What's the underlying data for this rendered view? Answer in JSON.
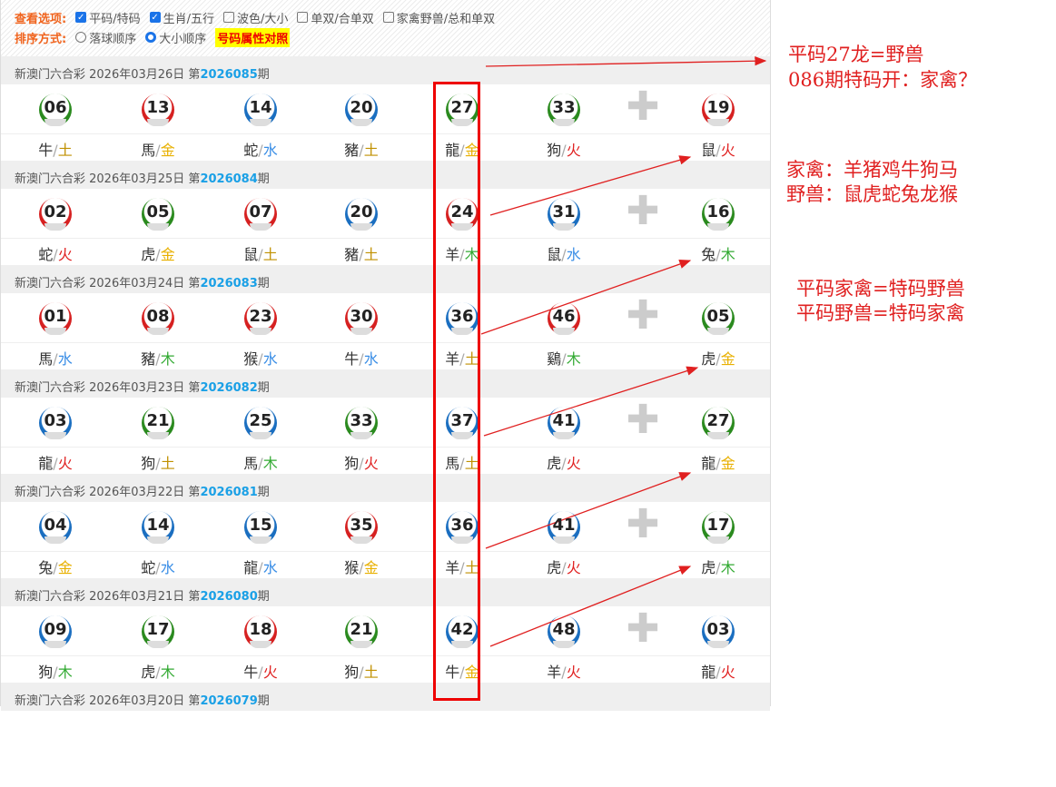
{
  "options": {
    "view_label": "查看选项:",
    "view": [
      {
        "label": "平码/特码",
        "checked": true
      },
      {
        "label": "生肖/五行",
        "checked": true
      },
      {
        "label": "波色/大小",
        "checked": false
      },
      {
        "label": "单双/合单双",
        "checked": false
      },
      {
        "label": "家禽野兽/总和单双",
        "checked": false
      }
    ],
    "sort_label": "排序方式:",
    "sort": [
      {
        "label": "落球顺序",
        "selected": false
      },
      {
        "label": "大小顺序",
        "selected": true
      }
    ],
    "compare_button": "号码属性对照"
  },
  "plus_icon": "plus-icon",
  "draws": [
    {
      "prefix": "新澳门六合彩 2026年03月26日 第",
      "issue": "2026085",
      "suffix": "期",
      "balls": [
        [
          "06",
          "g",
          "牛",
          "土"
        ],
        [
          "13",
          "r",
          "馬",
          "金"
        ],
        [
          "14",
          "b",
          "蛇",
          "水"
        ],
        [
          "20",
          "b",
          "豬",
          "土"
        ],
        [
          "27",
          "g",
          "龍",
          "金"
        ],
        [
          "33",
          "g",
          "狗",
          "火"
        ],
        [
          "19",
          "r",
          "鼠",
          "火"
        ]
      ]
    },
    {
      "prefix": "新澳门六合彩 2026年03月25日 第",
      "issue": "2026084",
      "suffix": "期",
      "balls": [
        [
          "02",
          "r",
          "蛇",
          "火"
        ],
        [
          "05",
          "g",
          "虎",
          "金"
        ],
        [
          "07",
          "r",
          "鼠",
          "土"
        ],
        [
          "20",
          "b",
          "豬",
          "土"
        ],
        [
          "24",
          "r",
          "羊",
          "木"
        ],
        [
          "31",
          "b",
          "鼠",
          "水"
        ],
        [
          "16",
          "g",
          "兔",
          "木"
        ]
      ]
    },
    {
      "prefix": "新澳门六合彩 2026年03月24日 第",
      "issue": "2026083",
      "suffix": "期",
      "balls": [
        [
          "01",
          "r",
          "馬",
          "水"
        ],
        [
          "08",
          "r",
          "豬",
          "木"
        ],
        [
          "23",
          "r",
          "猴",
          "水"
        ],
        [
          "30",
          "r",
          "牛",
          "水"
        ],
        [
          "36",
          "b",
          "羊",
          "土"
        ],
        [
          "46",
          "r",
          "鷄",
          "木"
        ],
        [
          "05",
          "g",
          "虎",
          "金"
        ]
      ]
    },
    {
      "prefix": "新澳门六合彩 2026年03月23日 第",
      "issue": "2026082",
      "suffix": "期",
      "balls": [
        [
          "03",
          "b",
          "龍",
          "火"
        ],
        [
          "21",
          "g",
          "狗",
          "土"
        ],
        [
          "25",
          "b",
          "馬",
          "木"
        ],
        [
          "33",
          "g",
          "狗",
          "火"
        ],
        [
          "37",
          "b",
          "馬",
          "土"
        ],
        [
          "41",
          "b",
          "虎",
          "火"
        ],
        [
          "27",
          "g",
          "龍",
          "金"
        ]
      ]
    },
    {
      "prefix": "新澳门六合彩 2026年03月22日 第",
      "issue": "2026081",
      "suffix": "期",
      "balls": [
        [
          "04",
          "b",
          "兔",
          "金"
        ],
        [
          "14",
          "b",
          "蛇",
          "水"
        ],
        [
          "15",
          "b",
          "龍",
          "水"
        ],
        [
          "35",
          "r",
          "猴",
          "金"
        ],
        [
          "36",
          "b",
          "羊",
          "土"
        ],
        [
          "41",
          "b",
          "虎",
          "火"
        ],
        [
          "17",
          "g",
          "虎",
          "木"
        ]
      ]
    },
    {
      "prefix": "新澳门六合彩 2026年03月21日 第",
      "issue": "2026080",
      "suffix": "期",
      "balls": [
        [
          "09",
          "b",
          "狗",
          "木"
        ],
        [
          "17",
          "g",
          "虎",
          "木"
        ],
        [
          "18",
          "r",
          "牛",
          "火"
        ],
        [
          "21",
          "g",
          "狗",
          "土"
        ],
        [
          "42",
          "b",
          "牛",
          "金"
        ],
        [
          "48",
          "b",
          "羊",
          "火"
        ],
        [
          "03",
          "b",
          "龍",
          "火"
        ]
      ]
    },
    {
      "prefix": "新澳门六合彩 2026年03月20日 第",
      "issue": "2026079",
      "suffix": "期",
      "balls": []
    }
  ],
  "annotations": {
    "n1": "平码27龙=野兽",
    "n2": "086期特码开：家禽？",
    "n3": "家禽：羊猪鸡牛狗马",
    "n4": "野兽：鼠虎蛇兔龙猴",
    "n5": "平码家禽=特码野兽",
    "n6": "平码野兽=特码家禽",
    "color": "#e02020"
  }
}
